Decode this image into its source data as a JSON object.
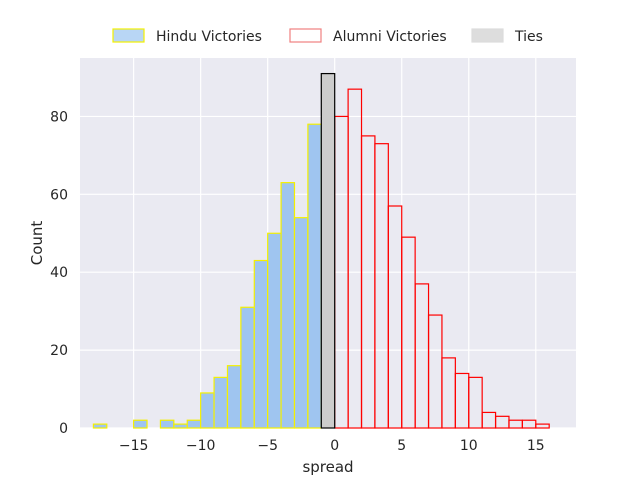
{
  "chart_data": {
    "type": "bar",
    "title": "",
    "xlabel": "spread",
    "ylabel": "Count",
    "xlim": [
      -19,
      18
    ],
    "ylim": [
      0,
      95
    ],
    "xticks": [
      -15,
      -10,
      -5,
      0,
      5,
      10,
      15
    ],
    "xtick_labels": [
      "−15",
      "−10",
      "−5",
      "0",
      "5",
      "10",
      "15"
    ],
    "yticks": [
      0,
      20,
      40,
      60,
      80
    ],
    "ytick_labels": [
      "0",
      "20",
      "40",
      "60",
      "80"
    ],
    "grid": true,
    "legend_position": "top-center",
    "bin_width": 1,
    "series": [
      {
        "name": "Hindu Victories",
        "fill": "#9fc5f0",
        "stroke": "#f4f000",
        "bins": [
          {
            "start": -18,
            "value": 1
          },
          {
            "start": -15,
            "value": 2
          },
          {
            "start": -13,
            "value": 2
          },
          {
            "start": -12,
            "value": 1
          },
          {
            "start": -11,
            "value": 2
          },
          {
            "start": -10,
            "value": 9
          },
          {
            "start": -9,
            "value": 13
          },
          {
            "start": -8,
            "value": 16
          },
          {
            "start": -7,
            "value": 31
          },
          {
            "start": -6,
            "value": 43
          },
          {
            "start": -5,
            "value": 50
          },
          {
            "start": -4,
            "value": 63
          },
          {
            "start": -3,
            "value": 54
          },
          {
            "start": -2,
            "value": 78
          }
        ]
      },
      {
        "name": "Alumni Victories",
        "fill": "none",
        "stroke": "#ff0000",
        "bins": [
          {
            "start": 0,
            "value": 80
          },
          {
            "start": 1,
            "value": 87
          },
          {
            "start": 2,
            "value": 75
          },
          {
            "start": 3,
            "value": 73
          },
          {
            "start": 4,
            "value": 57
          },
          {
            "start": 5,
            "value": 49
          },
          {
            "start": 6,
            "value": 37
          },
          {
            "start": 7,
            "value": 29
          },
          {
            "start": 8,
            "value": 18
          },
          {
            "start": 9,
            "value": 14
          },
          {
            "start": 10,
            "value": 13
          },
          {
            "start": 11,
            "value": 4
          },
          {
            "start": 12,
            "value": 3
          },
          {
            "start": 13,
            "value": 2
          },
          {
            "start": 14,
            "value": 2
          },
          {
            "start": 15,
            "value": 1
          }
        ]
      },
      {
        "name": "Ties",
        "fill": "#cccccc",
        "stroke": "#000000",
        "bins": [
          {
            "start": -1,
            "value": 91
          }
        ]
      }
    ],
    "plot_background": "#eaeaf2",
    "grid_color": "#ffffff"
  }
}
